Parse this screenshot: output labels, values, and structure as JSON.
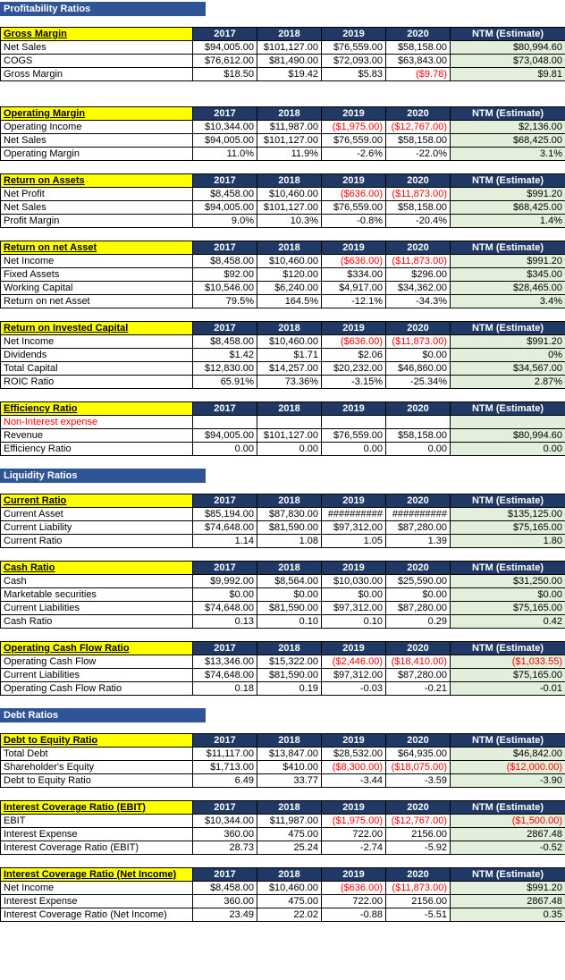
{
  "columns": [
    "2017",
    "2018",
    "2019",
    "2020",
    "NTM (Estimate)"
  ],
  "colors": {
    "section_bar": "#2F5597",
    "header_navy": "#1F3864",
    "title_yellow": "#FFFF00",
    "ntm_green": "#E2EFDA",
    "negative_red": "#FF0000"
  },
  "sections": [
    {
      "type": "bar",
      "label": "Profitability Ratios"
    },
    {
      "type": "table",
      "title": "Gross Margin",
      "rows": [
        {
          "label": "Net Sales",
          "values": [
            "$94,005.00",
            "$101,127.00",
            "$76,559.00",
            "$58,158.00",
            "$80,994.60"
          ]
        },
        {
          "label": "COGS",
          "values": [
            "$76,612.00",
            "$81,490.00",
            "$72,093.00",
            "$63,843.00",
            "$73,048.00"
          ]
        },
        {
          "label": "Gross Margin",
          "values": [
            "$18.50",
            "$19.42",
            "$5.83",
            "($9.78)",
            "$9.81"
          ]
        }
      ]
    },
    {
      "type": "table",
      "title": "Operating Margin",
      "rows": [
        {
          "label": "Operating Income",
          "values": [
            "$10,344.00",
            "$11,987.00",
            "($1,975.00)",
            "($12,767.00)",
            "$2,136.00"
          ]
        },
        {
          "label": "Net Sales",
          "values": [
            "$94,005.00",
            "$101,127.00",
            "$76,559.00",
            "$58,158.00",
            "$68,425.00"
          ]
        },
        {
          "label": "Operating Margin",
          "values": [
            "11.0%",
            "11.9%",
            "-2.6%",
            "-22.0%",
            "3.1%"
          ]
        }
      ]
    },
    {
      "type": "table",
      "title": "Return on Assets",
      "rows": [
        {
          "label": "Net Profit",
          "values": [
            "$8,458.00",
            "$10,460.00",
            "($636.00)",
            "($11,873.00)",
            "$991.20"
          ]
        },
        {
          "label": "Net Sales",
          "values": [
            "$94,005.00",
            "$101,127.00",
            "$76,559.00",
            "$58,158.00",
            "$68,425.00"
          ]
        },
        {
          "label": "Profit Margin",
          "values": [
            "9.0%",
            "10.3%",
            "-0.8%",
            "-20.4%",
            "1.4%"
          ]
        }
      ]
    },
    {
      "type": "table",
      "title": "Return on net Asset",
      "rows": [
        {
          "label": "Net Income",
          "values": [
            "$8,458.00",
            "$10,460.00",
            "($636.00)",
            "($11,873.00)",
            "$991.20"
          ]
        },
        {
          "label": "Fixed Assets",
          "values": [
            "$92.00",
            "$120.00",
            "$334.00",
            "$296.00",
            "$345.00"
          ]
        },
        {
          "label": "Working Capital",
          "values": [
            "$10,546.00",
            "$6,240.00",
            "$4,917.00",
            "$34,362.00",
            "$28,465.00"
          ]
        },
        {
          "label": "Return on net Asset",
          "values": [
            "79.5%",
            "164.5%",
            "-12.1%",
            "-34.3%",
            "3.4%"
          ]
        }
      ]
    },
    {
      "type": "table",
      "title": "Return on Invested Capital",
      "rows": [
        {
          "label": "Net Income",
          "values": [
            "$8,458.00",
            "$10,460.00",
            "($636.00)",
            "($11,873.00)",
            "$991.20"
          ]
        },
        {
          "label": "Dividends",
          "values": [
            "$1.42",
            "$1.71",
            "$2.06",
            "$0.00",
            "0%"
          ]
        },
        {
          "label": "Total Capital",
          "values": [
            "$12,830.00",
            "$14,257.00",
            "$20,232.00",
            "$46,860.00",
            "$34,567.00"
          ]
        },
        {
          "label": "ROIC Ratio",
          "values": [
            "65.91%",
            "73.36%",
            "-3.15%",
            "-25.34%",
            "2.87%"
          ]
        }
      ]
    },
    {
      "type": "table",
      "title": "Efficiency Ratio",
      "rows": [
        {
          "label": "Non-Interest expense",
          "red": true,
          "values": [
            "",
            "",
            "",
            "",
            ""
          ]
        },
        {
          "label": "Revenue",
          "values": [
            "$94,005.00",
            "$101,127.00",
            "$76,559.00",
            "$58,158.00",
            "$80,994.60"
          ]
        },
        {
          "label": "Efficiency Ratio",
          "values": [
            "0.00",
            "0.00",
            "0.00",
            "0.00",
            "0.00"
          ]
        }
      ]
    },
    {
      "type": "bar",
      "label": "Liquidity Ratios"
    },
    {
      "type": "table",
      "title": "Current Ratio",
      "rows": [
        {
          "label": "Current Asset",
          "values": [
            "$85,194.00",
            "$87,830.00",
            "##########",
            "##########",
            "$135,125.00"
          ]
        },
        {
          "label": "Current Liability",
          "values": [
            "$74,648.00",
            "$81,590.00",
            "$97,312.00",
            "$87,280.00",
            "$75,165.00"
          ]
        },
        {
          "label": "Current Ratio",
          "values": [
            "1.14",
            "1.08",
            "1.05",
            "1.39",
            "1.80"
          ]
        }
      ]
    },
    {
      "type": "table",
      "title": "Cash Ratio",
      "rows": [
        {
          "label": "Cash",
          "values": [
            "$9,992.00",
            "$8,564.00",
            "$10,030.00",
            "$25,590.00",
            "$31,250.00"
          ]
        },
        {
          "label": "Marketable securities",
          "values": [
            "$0.00",
            "$0.00",
            "$0.00",
            "$0.00",
            "$0.00"
          ]
        },
        {
          "label": "Current Liabilities",
          "values": [
            "$74,648.00",
            "$81,590.00",
            "$97,312.00",
            "$87,280.00",
            "$75,165.00"
          ]
        },
        {
          "label": "Cash Ratio",
          "values": [
            "0.13",
            "0.10",
            "0.10",
            "0.29",
            "0.42"
          ]
        }
      ]
    },
    {
      "type": "table",
      "title": "Operating Cash Flow Ratio",
      "rows": [
        {
          "label": "Operating Cash Flow",
          "values": [
            "$13,346.00",
            "$15,322.00",
            "($2,446.00)",
            "($18,410.00)",
            "($1,033.55)"
          ]
        },
        {
          "label": "Current Liabilities",
          "values": [
            "$74,648.00",
            "$81,590.00",
            "$97,312.00",
            "$87,280.00",
            "$75,165.00"
          ]
        },
        {
          "label": "Operating Cash Flow Ratio",
          "values": [
            "0.18",
            "0.19",
            "-0.03",
            "-0.21",
            "-0.01"
          ]
        }
      ]
    },
    {
      "type": "bar",
      "label": "Debt Ratios"
    },
    {
      "type": "table",
      "title": "Debt to Equity Ratio",
      "rows": [
        {
          "label": "Total Debt",
          "values": [
            "$11,117.00",
            "$13,847.00",
            "$28,532.00",
            "$64,935.00",
            "$46,842.00"
          ]
        },
        {
          "label": "Shareholder's Equity",
          "values": [
            "$1,713.00",
            "$410.00",
            "($8,300.00)",
            "($18,075.00)",
            "($12,000.00)"
          ]
        },
        {
          "label": "Debt to Equity Ratio",
          "values": [
            "6.49",
            "33.77",
            "-3.44",
            "-3.59",
            "-3.90"
          ]
        }
      ]
    },
    {
      "type": "table",
      "title": "Interest Coverage Ratio (EBIT)",
      "rows": [
        {
          "label": "EBIT",
          "values": [
            "$10,344.00",
            "$11,987.00",
            "($1,975.00)",
            "($12,767.00)",
            "($1,500.00)"
          ]
        },
        {
          "label": "Interest Expense",
          "values": [
            "360.00",
            "475.00",
            "722.00",
            "2156.00",
            "2867.48"
          ]
        },
        {
          "label": "Interest Coverage Ratio (EBIT)",
          "values": [
            "28.73",
            "25.24",
            "-2.74",
            "-5.92",
            "-0.52"
          ]
        }
      ]
    },
    {
      "type": "table",
      "title": "Interest Coverage Ratio (Net Income)",
      "rows": [
        {
          "label": "Net Income",
          "values": [
            "$8,458.00",
            "$10,460.00",
            "($636.00)",
            "($11,873.00)",
            "$991.20"
          ]
        },
        {
          "label": "Interest Expense",
          "values": [
            "360.00",
            "475.00",
            "722.00",
            "2156.00",
            "2867.48"
          ]
        },
        {
          "label": "Interest Coverage Ratio (Net Income)",
          "values": [
            "23.49",
            "22.02",
            "-0.88",
            "-5.51",
            "0.35"
          ]
        }
      ]
    }
  ]
}
